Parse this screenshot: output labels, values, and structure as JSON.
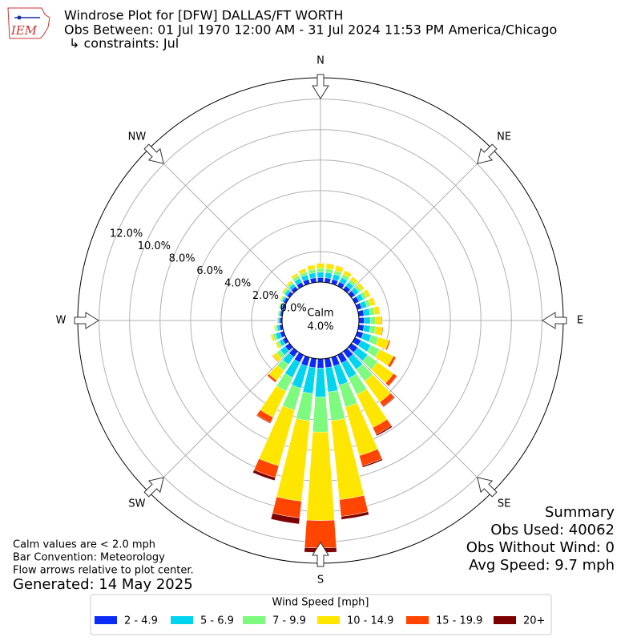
{
  "chart_data": {
    "type": "windrose",
    "logo_text": "IEM",
    "title": [
      "Windrose Plot for [DFW] DALLAS/FT WORTH",
      "Obs Between: 01 Jul 1970 12:00 AM - 31 Jul 2024 11:53 PM America/Chicago",
      "↳ constraints: Jul"
    ],
    "directions": [
      0,
      10,
      20,
      30,
      40,
      50,
      60,
      70,
      80,
      90,
      100,
      110,
      120,
      130,
      140,
      150,
      160,
      170,
      180,
      190,
      200,
      210,
      220,
      230,
      240,
      250,
      260,
      270,
      280,
      290,
      300,
      310,
      320,
      330,
      340,
      350
    ],
    "compass_labels": [
      "N",
      "NE",
      "E",
      "SE",
      "S",
      "SW",
      "W",
      "NW"
    ],
    "rlim": [
      0,
      13.4
    ],
    "rticks": [
      {
        "value": 0,
        "label": "0.0%"
      },
      {
        "value": 2,
        "label": "2.0%"
      },
      {
        "value": 4,
        "label": "4.0%"
      },
      {
        "value": 6,
        "label": "6.0%"
      },
      {
        "value": 8,
        "label": "8.0%"
      },
      {
        "value": 10,
        "label": "10.0%"
      },
      {
        "value": 12,
        "label": "12.0%"
      }
    ],
    "calm": {
      "label": "Calm",
      "value": 4.0,
      "value_label": "4.0%"
    },
    "legend_title": "Wind Speed [mph]",
    "series": [
      {
        "name": "2 - 4.9",
        "color": "#0b2cf5",
        "values": [
          0.3,
          0.3,
          0.3,
          0.3,
          0.3,
          0.3,
          0.3,
          0.3,
          0.35,
          0.35,
          0.35,
          0.4,
          0.45,
          0.5,
          0.55,
          0.6,
          0.6,
          0.6,
          0.6,
          0.6,
          0.6,
          0.55,
          0.45,
          0.35,
          0.25,
          0.25,
          0.2,
          0.15,
          0.14,
          0.15,
          0.18,
          0.22,
          0.25,
          0.28,
          0.3,
          0.3
        ]
      },
      {
        "name": "5 - 6.9",
        "color": "#00d4ef",
        "values": [
          0.35,
          0.35,
          0.35,
          0.33,
          0.3,
          0.3,
          0.33,
          0.35,
          0.4,
          0.4,
          0.42,
          0.55,
          0.7,
          0.8,
          0.9,
          1.1,
          1.3,
          1.6,
          1.9,
          1.7,
          1.5,
          1.1,
          0.6,
          0.4,
          0.25,
          0.3,
          0.15,
          0.1,
          0.09,
          0.1,
          0.13,
          0.18,
          0.2,
          0.28,
          0.3,
          0.33
        ]
      },
      {
        "name": "7 - 9.9",
        "color": "#7efb7e",
        "values": [
          0.25,
          0.25,
          0.25,
          0.23,
          0.2,
          0.2,
          0.23,
          0.25,
          0.3,
          0.32,
          0.35,
          0.5,
          0.65,
          0.8,
          0.95,
          1.2,
          1.5,
          1.9,
          2.3,
          1.8,
          1.5,
          1.0,
          0.5,
          0.3,
          0.15,
          0.2,
          0.1,
          0.07,
          0.06,
          0.07,
          0.09,
          0.12,
          0.14,
          0.2,
          0.2,
          0.23
        ]
      },
      {
        "name": "10 - 14.9",
        "color": "#ffe600",
        "values": [
          0.33,
          0.33,
          0.33,
          0.28,
          0.24,
          0.24,
          0.28,
          0.33,
          0.34,
          0.4,
          0.45,
          0.7,
          1.0,
          1.3,
          1.7,
          2.4,
          3.3,
          5.2,
          5.8,
          5.3,
          3.8,
          1.9,
          0.8,
          0.3,
          0.14,
          0.14,
          0.1,
          0.05,
          0.03,
          0.05,
          0.07,
          0.1,
          0.14,
          0.18,
          0.24,
          0.28
        ]
      },
      {
        "name": "15 - 19.9",
        "color": "#ff4500",
        "values": [
          0.03,
          0.03,
          0.03,
          0.02,
          0.01,
          0.01,
          0.02,
          0.03,
          0.03,
          0.06,
          0.06,
          0.1,
          0.18,
          0.27,
          0.35,
          0.5,
          0.7,
          1.1,
          1.8,
          1.1,
          0.8,
          0.4,
          0.15,
          0.05,
          0.01,
          0.01,
          0,
          0,
          0,
          0,
          0,
          0.01,
          0.01,
          0.01,
          0.01,
          0.02
        ]
      },
      {
        "name": "20+",
        "color": "#7d0000",
        "values": [
          0,
          0,
          0,
          0,
          0,
          0,
          0,
          0,
          0,
          0,
          0,
          0.01,
          0.02,
          0.03,
          0.05,
          0.1,
          0.1,
          0.2,
          0.3,
          0.4,
          0.2,
          0.05,
          0.02,
          0,
          0,
          0,
          0,
          0,
          0,
          0,
          0,
          0,
          0,
          0,
          0,
          0
        ]
      }
    ],
    "notes": [
      "Calm values are < 2.0 mph",
      "Bar Convention: Meteorology",
      "Flow arrows relative to plot center."
    ],
    "generated": "Generated: 14 May 2025",
    "summary": [
      "Summary",
      "Obs Used: 40062",
      "Obs Without Wind: 0",
      "Avg Speed: 9.7 mph"
    ]
  }
}
